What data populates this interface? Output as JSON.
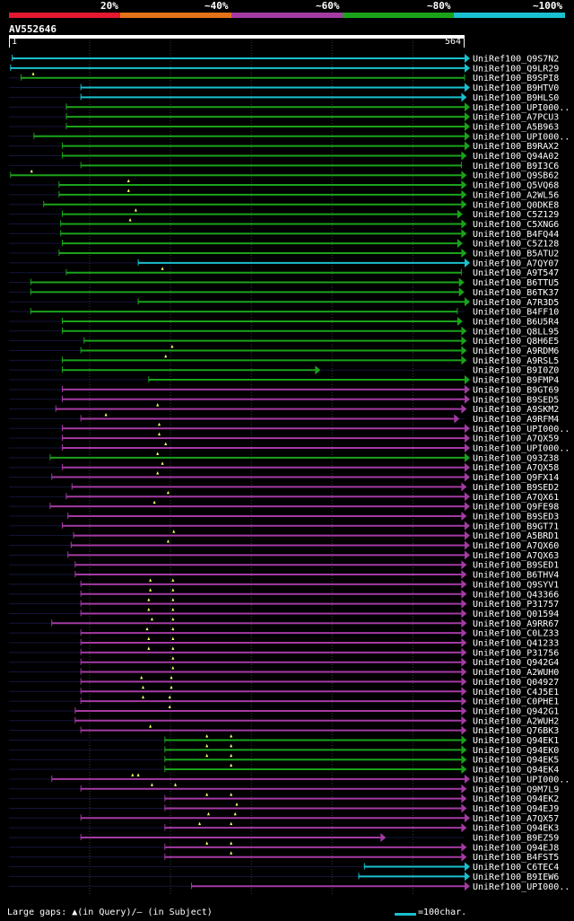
{
  "legend": {
    "labels": [
      "20%",
      "~40%",
      "~60%",
      "~80%",
      "~100%"
    ],
    "colors": [
      "#e4192f",
      "#e47219",
      "#a43aa4",
      "#1aa31a",
      "#19c0cf"
    ]
  },
  "query": {
    "id": "AV552646",
    "start": "1",
    "end": "564",
    "length": 564
  },
  "colors": {
    "cyan": "#19c0cf",
    "green": "#1aa31a",
    "magenta": "#a43aa4",
    "track": "#14143c"
  },
  "hits": [
    {
      "acc": "UniRef100_Q9S7N2",
      "c": "cyan",
      "s": 4,
      "e": 564,
      "f": 1
    },
    {
      "acc": "UniRef100_Q9LR29",
      "c": "cyan",
      "s": 2,
      "e": 564,
      "f": 1
    },
    {
      "acc": "UniRef100_B9SPI8",
      "c": "green",
      "s": 15,
      "e": 564,
      "f": 0,
      "m": [
        30
      ]
    },
    {
      "acc": "UniRef100_B9HTV0",
      "c": "cyan",
      "s": 89,
      "e": 564,
      "f": 1
    },
    {
      "acc": "UniRef100_B9HLS0",
      "c": "cyan",
      "s": 89,
      "e": 560,
      "f": 1
    },
    {
      "acc": "UniRef100_UPI000..",
      "c": "green",
      "s": 71,
      "e": 564,
      "f": 1
    },
    {
      "acc": "UniRef100_A7PCU3",
      "c": "green",
      "s": 71,
      "e": 564,
      "f": 1
    },
    {
      "acc": "UniRef100_A5B963",
      "c": "green",
      "s": 71,
      "e": 564,
      "f": 1
    },
    {
      "acc": "UniRef100_UPI000..",
      "c": "green",
      "s": 31,
      "e": 564,
      "f": 1
    },
    {
      "acc": "UniRef100_B9RAX2",
      "c": "green",
      "s": 66,
      "e": 564,
      "f": 1
    },
    {
      "acc": "UniRef100_Q94A02",
      "c": "green",
      "s": 66,
      "e": 560,
      "f": 1
    },
    {
      "acc": "UniRef100_B9I3C6",
      "c": "green",
      "s": 89,
      "e": 560,
      "f": 0
    },
    {
      "acc": "UniRef100_Q9SB62",
      "c": "green",
      "s": 2,
      "e": 560,
      "f": 1,
      "m": [
        28
      ]
    },
    {
      "acc": "UniRef100_Q5VQ68",
      "c": "green",
      "s": 62,
      "e": 560,
      "f": 1,
      "m": [
        148
      ]
    },
    {
      "acc": "UniRef100_A2WL56",
      "c": "green",
      "s": 62,
      "e": 560,
      "f": 1,
      "m": [
        148
      ]
    },
    {
      "acc": "UniRef100_Q0DKE8",
      "c": "green",
      "s": 43,
      "e": 560,
      "f": 1
    },
    {
      "acc": "UniRef100_C5Z129",
      "c": "green",
      "s": 66,
      "e": 555,
      "f": 1,
      "m": [
        157
      ]
    },
    {
      "acc": "UniRef100_C5XNG6",
      "c": "green",
      "s": 64,
      "e": 560,
      "f": 1,
      "m": [
        150
      ]
    },
    {
      "acc": "UniRef100_B4FQ44",
      "c": "green",
      "s": 64,
      "e": 560,
      "f": 1
    },
    {
      "acc": "UniRef100_C5Z128",
      "c": "green",
      "s": 66,
      "e": 555,
      "f": 1
    },
    {
      "acc": "UniRef100_B5ATU2",
      "c": "green",
      "s": 62,
      "e": 560,
      "f": 1
    },
    {
      "acc": "UniRef100_A7QY07",
      "c": "cyan",
      "s": 160,
      "e": 564,
      "f": 1
    },
    {
      "acc": "UniRef100_A9T547",
      "c": "green",
      "s": 71,
      "e": 560,
      "f": 0,
      "m": [
        190
      ]
    },
    {
      "acc": "UniRef100_B6TTU5",
      "c": "green",
      "s": 27,
      "e": 557,
      "f": 1
    },
    {
      "acc": "UniRef100_B6TK37",
      "c": "green",
      "s": 27,
      "e": 557,
      "f": 1
    },
    {
      "acc": "UniRef100_A7R3D5",
      "c": "green",
      "s": 160,
      "e": 564,
      "f": 1
    },
    {
      "acc": "UniRef100_B4FF10",
      "c": "green",
      "s": 27,
      "e": 555,
      "f": 0
    },
    {
      "acc": "UniRef100_B6U5R4",
      "c": "green",
      "s": 66,
      "e": 555,
      "f": 1
    },
    {
      "acc": "UniRef100_Q8LL95",
      "c": "green",
      "s": 66,
      "e": 560,
      "f": 1
    },
    {
      "acc": "UniRef100_Q8H6E5",
      "c": "green",
      "s": 93,
      "e": 560,
      "f": 1
    },
    {
      "acc": "UniRef100_A9RDM6",
      "c": "green",
      "s": 89,
      "e": 560,
      "f": 1,
      "m": [
        202
      ]
    },
    {
      "acc": "UniRef100_A9RSL5",
      "c": "green",
      "s": 66,
      "e": 560,
      "f": 1,
      "m": [
        194
      ]
    },
    {
      "acc": "UniRef100_B9I0Z0",
      "c": "green",
      "s": 66,
      "e": 379,
      "f": 1
    },
    {
      "acc": "UniRef100_B9FMP4",
      "c": "green",
      "s": 173,
      "e": 564,
      "f": 1
    },
    {
      "acc": "UniRef100_B9GT69",
      "c": "magenta",
      "s": 66,
      "e": 564,
      "f": 1
    },
    {
      "acc": "UniRef100_B9SED5",
      "c": "magenta",
      "s": 66,
      "e": 564,
      "f": 1
    },
    {
      "acc": "UniRef100_A9SKM2",
      "c": "magenta",
      "s": 58,
      "e": 560,
      "f": 1,
      "m": [
        184
      ]
    },
    {
      "acc": "UniRef100_A9RFM4",
      "c": "magenta",
      "s": 89,
      "e": 551,
      "f": 1,
      "m": [
        120
      ]
    },
    {
      "acc": "UniRef100_UPI000..",
      "c": "magenta",
      "s": 66,
      "e": 564,
      "f": 1,
      "m": [
        186
      ]
    },
    {
      "acc": "UniRef100_A7QX59",
      "c": "magenta",
      "s": 66,
      "e": 564,
      "f": 1,
      "m": [
        186
      ]
    },
    {
      "acc": "UniRef100_UPI000..",
      "c": "magenta",
      "s": 66,
      "e": 564,
      "f": 1,
      "m": [
        194
      ]
    },
    {
      "acc": "UniRef100_Q93Z38",
      "c": "green",
      "s": 51,
      "e": 564,
      "f": 1,
      "m": [
        184
      ]
    },
    {
      "acc": "UniRef100_A7QX58",
      "c": "magenta",
      "s": 66,
      "e": 564,
      "f": 1,
      "m": [
        190
      ]
    },
    {
      "acc": "UniRef100_Q9FX14",
      "c": "magenta",
      "s": 53,
      "e": 564,
      "f": 1,
      "m": [
        184
      ]
    },
    {
      "acc": "UniRef100_B9SED2",
      "c": "magenta",
      "s": 78,
      "e": 560,
      "f": 1
    },
    {
      "acc": "UniRef100_A7QX61",
      "c": "magenta",
      "s": 71,
      "e": 564,
      "f": 1,
      "m": [
        197
      ]
    },
    {
      "acc": "UniRef100_Q9FE98",
      "c": "magenta",
      "s": 51,
      "e": 564,
      "f": 1,
      "m": [
        180
      ]
    },
    {
      "acc": "UniRef100_B9SED3",
      "c": "magenta",
      "s": 73,
      "e": 560,
      "f": 1
    },
    {
      "acc": "UniRef100_B9GT71",
      "c": "magenta",
      "s": 66,
      "e": 564,
      "f": 1
    },
    {
      "acc": "UniRef100_A5BRD1",
      "c": "magenta",
      "s": 80,
      "e": 564,
      "f": 1,
      "m": [
        204
      ]
    },
    {
      "acc": "UniRef100_A7QX60",
      "c": "magenta",
      "s": 77,
      "e": 564,
      "f": 1,
      "m": [
        197
      ]
    },
    {
      "acc": "UniRef100_A7QX63",
      "c": "magenta",
      "s": 73,
      "e": 564,
      "f": 1
    },
    {
      "acc": "UniRef100_B9SED1",
      "c": "magenta",
      "s": 82,
      "e": 560,
      "f": 1
    },
    {
      "acc": "UniRef100_B6THV4",
      "c": "magenta",
      "s": 82,
      "e": 560,
      "f": 1
    },
    {
      "acc": "UniRef100_Q9SYV1",
      "c": "magenta",
      "s": 89,
      "e": 560,
      "f": 1,
      "m": [
        175,
        203
      ]
    },
    {
      "acc": "UniRef100_Q43366",
      "c": "magenta",
      "s": 89,
      "e": 560,
      "f": 1,
      "m": [
        175,
        203
      ]
    },
    {
      "acc": "UniRef100_P31757",
      "c": "magenta",
      "s": 89,
      "e": 560,
      "f": 1,
      "m": [
        173,
        203
      ]
    },
    {
      "acc": "UniRef100_Q01594",
      "c": "magenta",
      "s": 89,
      "e": 560,
      "f": 1,
      "m": [
        173,
        203
      ]
    },
    {
      "acc": "UniRef100_A9RR67",
      "c": "magenta",
      "s": 53,
      "e": 560,
      "f": 1,
      "m": [
        177,
        203
      ]
    },
    {
      "acc": "UniRef100_C0LZ33",
      "c": "magenta",
      "s": 89,
      "e": 560,
      "f": 1,
      "m": [
        171,
        203
      ]
    },
    {
      "acc": "UniRef100_Q41233",
      "c": "magenta",
      "s": 89,
      "e": 560,
      "f": 1,
      "m": [
        173,
        203
      ]
    },
    {
      "acc": "UniRef100_P31756",
      "c": "magenta",
      "s": 89,
      "e": 560,
      "f": 1,
      "m": [
        173,
        203
      ]
    },
    {
      "acc": "UniRef100_Q942G4",
      "c": "magenta",
      "s": 89,
      "e": 560,
      "f": 1,
      "m": [
        203
      ]
    },
    {
      "acc": "UniRef100_A2WUH0",
      "c": "magenta",
      "s": 89,
      "e": 560,
      "f": 1,
      "m": [
        203
      ]
    },
    {
      "acc": "UniRef100_Q04927",
      "c": "magenta",
      "s": 89,
      "e": 560,
      "f": 1,
      "m": [
        164,
        201
      ]
    },
    {
      "acc": "UniRef100_C4J5E1",
      "c": "magenta",
      "s": 89,
      "e": 560,
      "f": 1,
      "m": [
        166,
        201
      ]
    },
    {
      "acc": "UniRef100_C0PHE1",
      "c": "magenta",
      "s": 89,
      "e": 560,
      "f": 1,
      "m": [
        166,
        199
      ]
    },
    {
      "acc": "UniRef100_Q942G1",
      "c": "magenta",
      "s": 82,
      "e": 560,
      "f": 1,
      "m": [
        199
      ]
    },
    {
      "acc": "UniRef100_A2WUH2",
      "c": "magenta",
      "s": 82,
      "e": 560,
      "f": 1
    },
    {
      "acc": "UniRef100_Q76BK3",
      "c": "magenta",
      "s": 89,
      "e": 560,
      "f": 1,
      "m": [
        175
      ]
    },
    {
      "acc": "UniRef100_Q94EK1",
      "c": "green",
      "s": 193,
      "e": 560,
      "f": 1,
      "m": [
        245,
        275
      ]
    },
    {
      "acc": "UniRef100_Q94EK0",
      "c": "green",
      "s": 193,
      "e": 560,
      "f": 1,
      "m": [
        245,
        275
      ]
    },
    {
      "acc": "UniRef100_Q94EK5",
      "c": "green",
      "s": 193,
      "e": 560,
      "f": 1,
      "m": [
        245,
        275
      ]
    },
    {
      "acc": "UniRef100_Q94EK4",
      "c": "green",
      "s": 193,
      "e": 560,
      "f": 1,
      "m": [
        275
      ]
    },
    {
      "acc": "UniRef100_UPI000..",
      "c": "magenta",
      "s": 53,
      "e": 564,
      "f": 1,
      "m": [
        153,
        160
      ]
    },
    {
      "acc": "UniRef100_Q9M7L9",
      "c": "magenta",
      "s": 89,
      "e": 560,
      "f": 1,
      "m": [
        177,
        206
      ]
    },
    {
      "acc": "UniRef100_Q94EK2",
      "c": "magenta",
      "s": 193,
      "e": 560,
      "f": 1,
      "m": [
        245,
        275
      ]
    },
    {
      "acc": "UniRef100_Q94EJ9",
      "c": "magenta",
      "s": 193,
      "e": 560,
      "f": 1,
      "m": [
        282
      ]
    },
    {
      "acc": "UniRef100_A7QX57",
      "c": "magenta",
      "s": 89,
      "e": 564,
      "f": 1,
      "m": [
        247,
        280
      ]
    },
    {
      "acc": "UniRef100_Q94EK3",
      "c": "magenta",
      "s": 193,
      "e": 560,
      "f": 1,
      "m": [
        236,
        275
      ]
    },
    {
      "acc": "UniRef100_B9EZ59",
      "c": "magenta",
      "s": 89,
      "e": 460,
      "f": 1
    },
    {
      "acc": "UniRef100_Q94EJ8",
      "c": "magenta",
      "s": 193,
      "e": 560,
      "f": 1,
      "m": [
        245,
        275
      ]
    },
    {
      "acc": "UniRef100_B4FST5",
      "c": "magenta",
      "s": 193,
      "e": 560,
      "f": 1,
      "m": [
        275
      ]
    },
    {
      "acc": "UniRef100_C6TEC4",
      "c": "cyan",
      "s": 440,
      "e": 564,
      "f": 1
    },
    {
      "acc": "UniRef100_B9IEW6",
      "c": "cyan",
      "s": 433,
      "e": 564,
      "f": 1
    },
    {
      "acc": "UniRef100_UPI000..",
      "c": "magenta",
      "s": 226,
      "e": 564,
      "f": 1
    }
  ],
  "footer": {
    "gaps_text": "Large gaps: ▲(in Query)/– (in Subject)",
    "scale_text": "=100char."
  }
}
